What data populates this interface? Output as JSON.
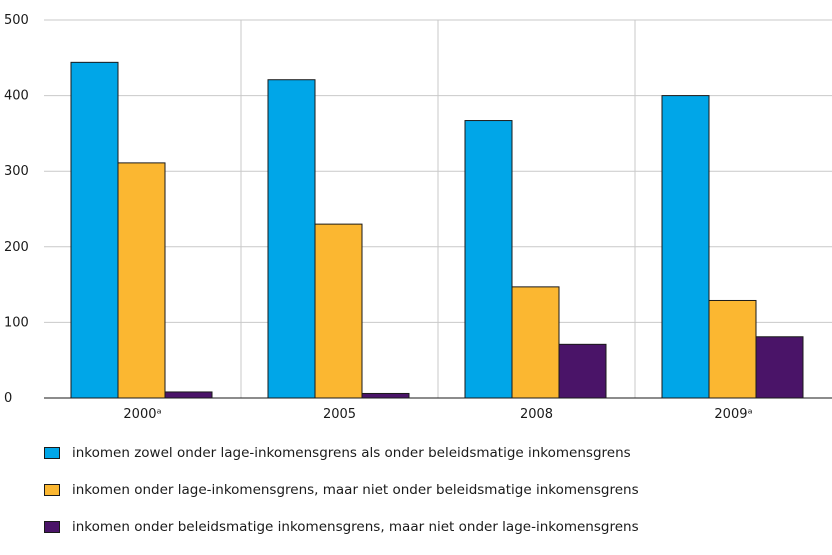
{
  "chart_data": {
    "type": "bar",
    "categories": [
      "2000ᵃ",
      "2005",
      "2008",
      "2009ᵃ"
    ],
    "series": [
      {
        "name": "inkomen zowel onder lage-inkomensgrens als onder beleidsmatige inkomensgrens",
        "color": "#00a6e8",
        "values": [
          444,
          421,
          367,
          400
        ]
      },
      {
        "name": "inkomen onder lage-inkomensgrens, maar niet onder beleidsmatige inkomensgrens",
        "color": "#fbb731",
        "values": [
          311,
          230,
          147,
          129
        ]
      },
      {
        "name": "inkomen onder beleidsmatige inkomensgrens, maar niet onder lage-inkomensgrens",
        "color": "#4a1468",
        "values": [
          8,
          6,
          71,
          81
        ]
      }
    ],
    "yticks": [
      0,
      100,
      200,
      300,
      400,
      500
    ],
    "ylim": [
      0,
      500
    ],
    "grid": true,
    "legend_position": "bottom"
  }
}
